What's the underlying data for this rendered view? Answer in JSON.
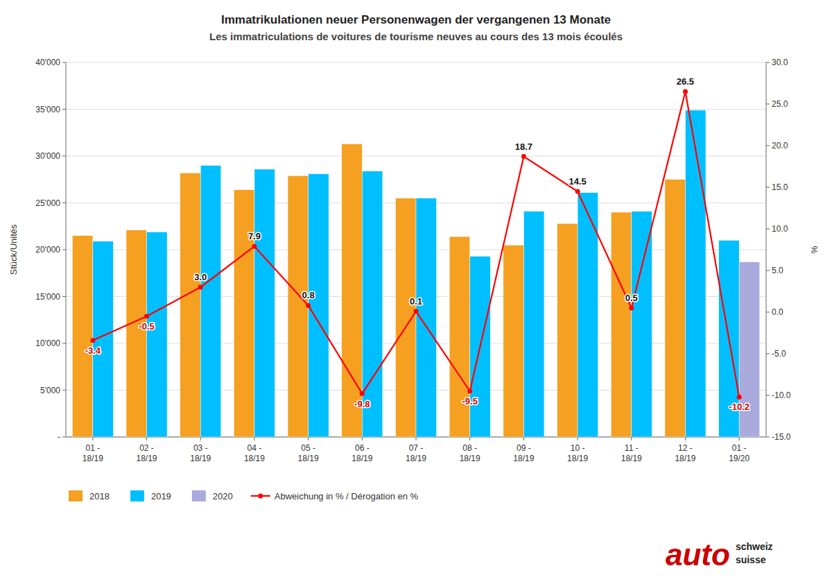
{
  "chart_data": {
    "type": "bar",
    "title": "Immatrikulationen neuer Personenwagen der vergangenen 13 Monate",
    "subtitle": "Les immatriculations de voitures de tourisme neuves au cours des 13 mois écoulés",
    "ylabel": "Stück/Unités",
    "y2label": "%",
    "categories": [
      "01 -\n18/19",
      "02 -\n18/19",
      "03 -\n18/19",
      "04 -\n18/19",
      "05 -\n18/19",
      "06 -\n18/19",
      "07 -\n18/19",
      "08 -\n18/19",
      "09 -\n18/19",
      "10 -\n18/19",
      "11 -\n18/19",
      "12 -\n18/19",
      "01 -\n19/20"
    ],
    "series": [
      {
        "name": "2018",
        "color": "#F5A020",
        "values": [
          21500,
          22100,
          28200,
          26400,
          27900,
          31300,
          25500,
          21400,
          20500,
          22800,
          24000,
          27500,
          null
        ]
      },
      {
        "name": "2019",
        "color": "#00BFFF",
        "values": [
          20900,
          21900,
          29000,
          28600,
          28100,
          28400,
          25500,
          19300,
          24100,
          26100,
          24100,
          34900,
          21000
        ]
      },
      {
        "name": "2020",
        "color": "#AAAADD",
        "values": [
          null,
          null,
          null,
          null,
          null,
          null,
          null,
          null,
          null,
          null,
          null,
          null,
          18700
        ]
      },
      {
        "name": "Abweichung in % / Dérogation en %",
        "type": "line",
        "axis": "y2",
        "color": "#FF0000",
        "marker": "circle",
        "values": [
          -3.4,
          -0.5,
          3.0,
          7.9,
          0.8,
          -9.8,
          0.1,
          -9.5,
          18.7,
          14.5,
          0.5,
          26.5,
          -10.2
        ],
        "value_labels": [
          "-3.4",
          "-0.5",
          "3.0",
          "7.9",
          "0.8",
          "-9.8",
          "0.1",
          "-9.5",
          "18.7",
          "14.5",
          "0.5",
          "26.5",
          "-10.2"
        ]
      }
    ],
    "ylim": [
      0,
      40000
    ],
    "yticks": [
      {
        "value": 0,
        "label": "-"
      },
      {
        "value": 5000,
        "label": "5'000"
      },
      {
        "value": 10000,
        "label": "10'000"
      },
      {
        "value": 15000,
        "label": "15'000"
      },
      {
        "value": 20000,
        "label": "20'000"
      },
      {
        "value": 25000,
        "label": "25'000"
      },
      {
        "value": 30000,
        "label": "30'000"
      },
      {
        "value": 35000,
        "label": "35'000"
      },
      {
        "value": 40000,
        "label": "40'000"
      }
    ],
    "y2lim": [
      -15.0,
      30.0
    ],
    "y2ticks": [
      {
        "value": -15.0,
        "label": "-15.0"
      },
      {
        "value": -10.0,
        "label": "-10.0"
      },
      {
        "value": -5.0,
        "label": "-5.0"
      },
      {
        "value": 0.0,
        "label": "0.0"
      },
      {
        "value": 5.0,
        "label": "5.0"
      },
      {
        "value": 10.0,
        "label": "10.0"
      },
      {
        "value": 15.0,
        "label": "15.0"
      },
      {
        "value": 20.0,
        "label": "20.0"
      },
      {
        "value": 25.0,
        "label": "25.0"
      },
      {
        "value": 30.0,
        "label": "30.0"
      }
    ],
    "grid": true,
    "legend": "bottom",
    "data_labels": true,
    "annotations": [
      "auto",
      "schweiz",
      "suisse"
    ]
  }
}
